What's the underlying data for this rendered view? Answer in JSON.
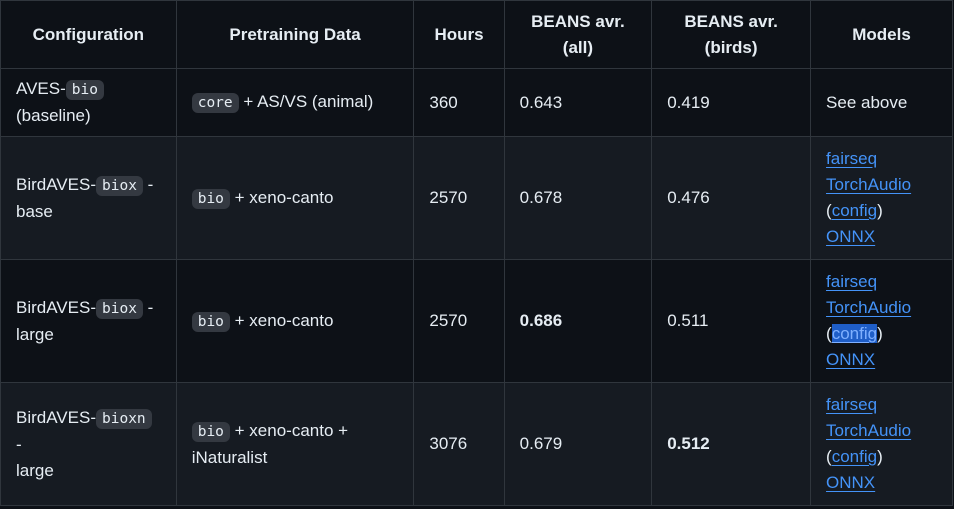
{
  "headers": [
    "Configuration",
    "Pretraining Data",
    "Hours",
    "BEANS avr. (all)",
    "BEANS avr. (birds)",
    "Models"
  ],
  "rows": [
    {
      "config_prefix": "AVES-",
      "config_code": "bio",
      "config_suffix": "",
      "config_line2": "(baseline)",
      "data_code": "core",
      "data_text": "+ AS/VS (animal)",
      "data_line2": "",
      "hours": "360",
      "beans_all": "0.643",
      "beans_birds": "0.419",
      "models_text": "See above"
    },
    {
      "config_prefix": "BirdAVES-",
      "config_code": "biox",
      "config_suffix": "-",
      "config_line2": "base",
      "data_code": "bio",
      "data_text": "+ xeno-canto",
      "data_line2": "",
      "hours": "2570",
      "beans_all": "0.678",
      "beans_birds": "0.476",
      "links": {
        "fairseq": "fairseq",
        "torchaudio": "TorchAudio",
        "open_paren": "(",
        "config": "config",
        "close_paren": ")",
        "onnx": "ONNX"
      }
    },
    {
      "config_prefix": "BirdAVES-",
      "config_code": "biox",
      "config_suffix": "-",
      "config_line2": "large",
      "data_code": "bio",
      "data_text": "+ xeno-canto",
      "data_line2": "",
      "hours": "2570",
      "beans_all": "0.686",
      "beans_birds": "0.511",
      "links": {
        "fairseq": "fairseq",
        "torchaudio": "TorchAudio",
        "open_paren": "(",
        "config": "config",
        "close_paren": ")",
        "onnx": "ONNX"
      }
    },
    {
      "config_prefix": "BirdAVES-",
      "config_code": "bioxn",
      "config_suffix": "-",
      "config_line2": "large",
      "data_code": "bio",
      "data_text": "+ xeno-canto +",
      "data_line2": "iNaturalist",
      "hours": "3076",
      "beans_all": "0.679",
      "beans_birds": "0.512",
      "links": {
        "fairseq": "fairseq",
        "torchaudio": "TorchAudio",
        "open_paren": "(",
        "config": "config",
        "close_paren": ")",
        "onnx": "ONNX"
      }
    }
  ],
  "colors": {
    "background": "#0d1117",
    "alt_row": "#161b22",
    "border": "#30363d",
    "link": "#4493f8",
    "text": "#e6edf3",
    "code_bg": "#343941",
    "selection": "#1f5ec7"
  }
}
